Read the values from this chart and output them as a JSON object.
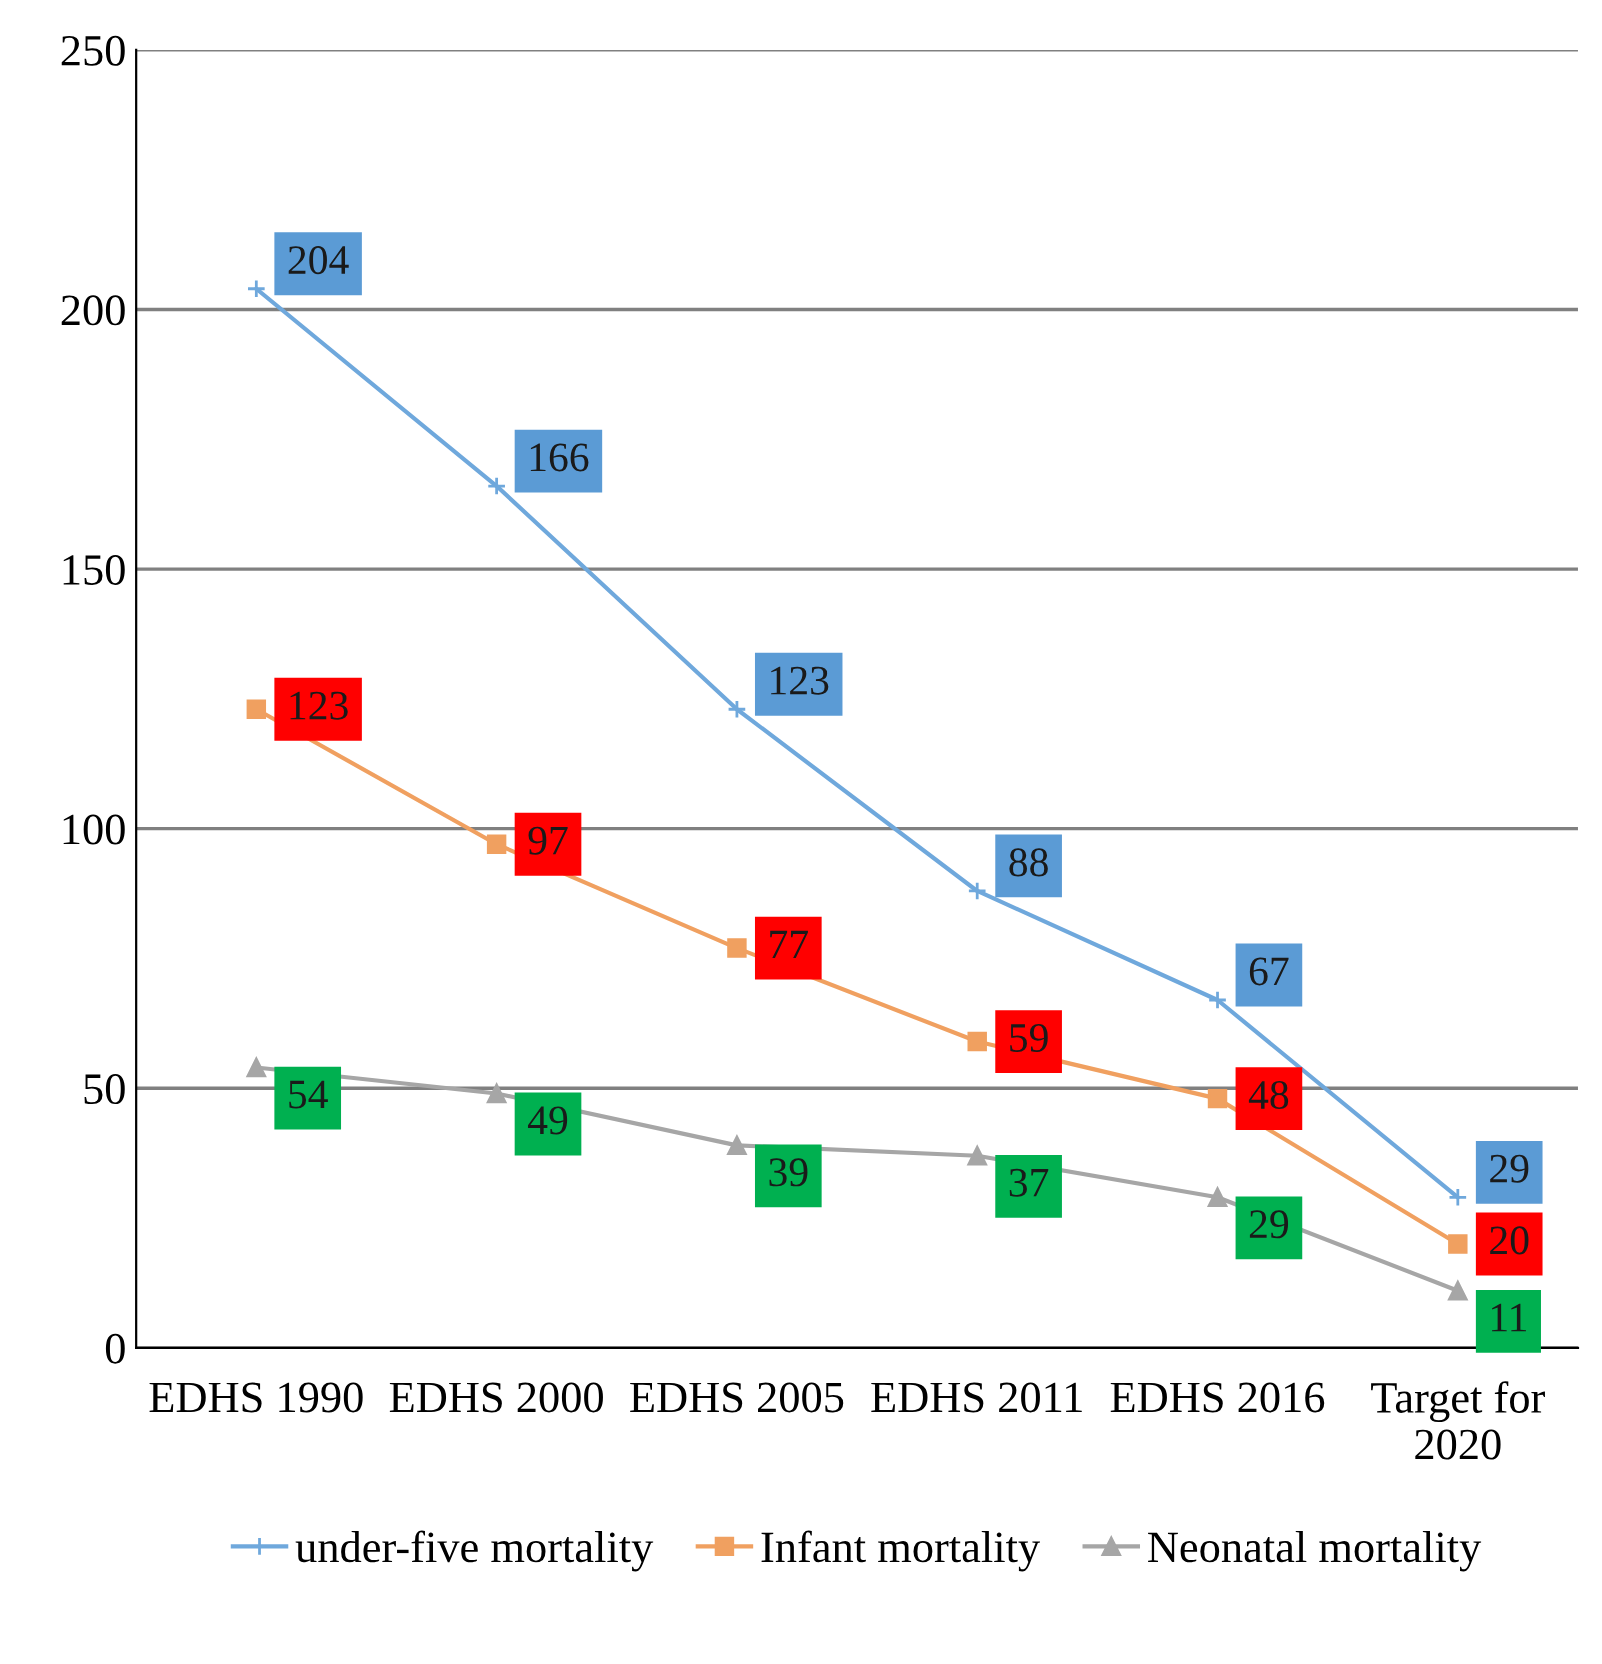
{
  "chart_data": {
    "type": "line",
    "categories": [
      "EDHS 1990",
      "EDHS 2000",
      "EDHS 2005",
      "EDHS 2011",
      "EDHS 2016",
      "Target for\n2020"
    ],
    "series": [
      {
        "name": "under-five mortality",
        "color": "#6fa8dc",
        "marker": "cross",
        "values": [
          204,
          166,
          123,
          88,
          67,
          29
        ]
      },
      {
        "name": "Infant mortality",
        "color": "#f0a060",
        "marker": "square",
        "values": [
          123,
          97,
          77,
          59,
          48,
          20
        ]
      },
      {
        "name": "Neonatal mortality",
        "color": "#a6a6a6",
        "marker": "triangle",
        "values": [
          54,
          49,
          39,
          37,
          29,
          11
        ]
      }
    ],
    "ylim": [
      0,
      250
    ],
    "yticks": [
      0,
      50,
      100,
      150,
      200,
      250
    ],
    "grid": "y",
    "legend": "bottom",
    "data_labels": true,
    "line_style": "solid"
  }
}
